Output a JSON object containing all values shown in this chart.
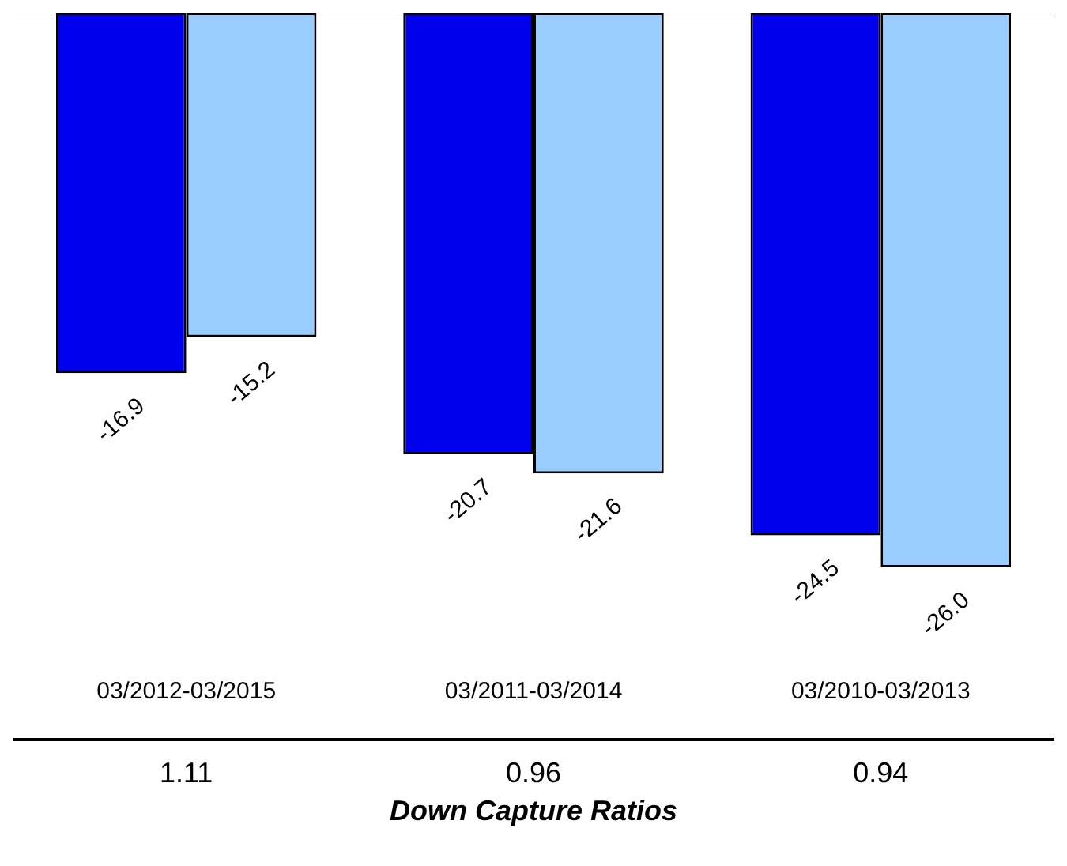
{
  "chart_data": {
    "type": "bar",
    "xlabel": "Down Capture Ratios",
    "categories": [
      "03/2012-03/2015",
      "03/2011-03/2014",
      "03/2010-03/2013"
    ],
    "series": [
      {
        "color": "#0000ee",
        "values": [
          -16.9,
          -20.7,
          -24.5
        ],
        "value_labels": [
          "-16.9",
          "-20.7",
          "-24.5"
        ]
      },
      {
        "color": "#99ccff",
        "values": [
          -15.2,
          -21.6,
          -26.0
        ],
        "value_labels": [
          "-15.2",
          "-21.6",
          "-26.0"
        ]
      }
    ],
    "annotations": [
      "1.11",
      "0.96",
      "0.94"
    ]
  }
}
